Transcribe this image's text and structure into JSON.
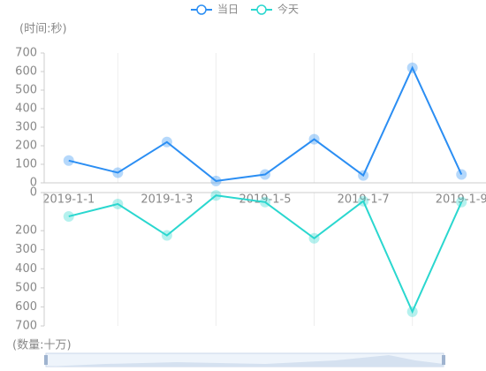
{
  "legend": [
    "当日",
    "今天"
  ],
  "chart_data": [
    {
      "type": "line",
      "y_label": "(时间:秒)",
      "categories": [
        "2019-1-1",
        null,
        "2019-1-3",
        null,
        "2019-1-5",
        null,
        "2019-1-7",
        null,
        "2019-1-9"
      ],
      "series": [
        {
          "name": "当日",
          "color": "#2b8ef3",
          "values": [
            120,
            55,
            220,
            10,
            45,
            235,
            40,
            620,
            45
          ]
        }
      ],
      "ylim": [
        0,
        700
      ],
      "yticks": [
        0,
        100,
        200,
        300,
        400,
        500,
        600,
        700
      ],
      "inverse": false
    },
    {
      "type": "line",
      "y_label": "(数量:十万)",
      "categories": [
        "2019-1-1",
        null,
        "2019-1-3",
        null,
        "2019-1-5",
        null,
        "2019-1-7",
        null,
        "2019-1-9"
      ],
      "series": [
        {
          "name": "今天",
          "color": "#2ad7cf",
          "values": [
            125,
            60,
            225,
            15,
            50,
            240,
            45,
            625,
            50
          ]
        }
      ],
      "ylim": [
        0,
        700
      ],
      "yticks": [
        0,
        200,
        300,
        400,
        500,
        600,
        700
      ],
      "inverse": true
    }
  ]
}
